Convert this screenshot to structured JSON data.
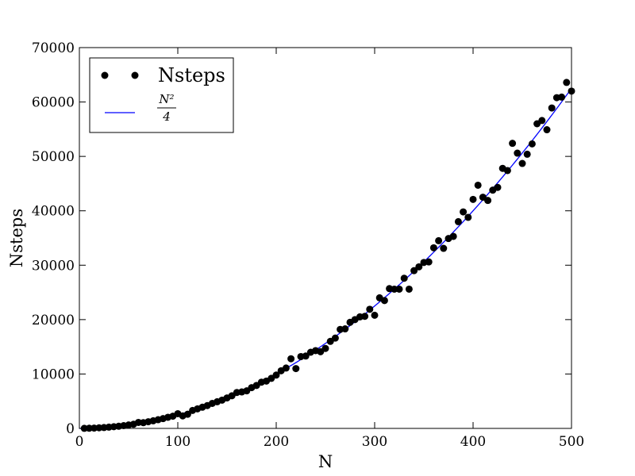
{
  "chart_data": {
    "type": "scatter",
    "xlabel": "N",
    "ylabel": "Nsteps",
    "xlim": [
      0,
      500
    ],
    "ylim": [
      0,
      70000
    ],
    "xticks": [
      "0",
      "100",
      "200",
      "300",
      "400",
      "500"
    ],
    "yticks": [
      "0",
      "10000",
      "20000",
      "30000",
      "40000",
      "50000",
      "60000",
      "70000"
    ],
    "grid": false,
    "legend_position": "top-left",
    "legend": {
      "points_label": "Nsteps",
      "line_label_numerator": "N²",
      "line_label_denominator": "4"
    },
    "series": [
      {
        "name": "Nsteps",
        "kind": "points",
        "color": "#000000",
        "x": [
          5,
          10,
          15,
          20,
          25,
          30,
          35,
          40,
          45,
          50,
          55,
          60,
          65,
          70,
          75,
          80,
          85,
          90,
          95,
          100,
          105,
          110,
          115,
          120,
          125,
          130,
          135,
          140,
          145,
          150,
          155,
          160,
          165,
          170,
          175,
          180,
          185,
          190,
          195,
          200,
          205,
          210,
          215,
          220,
          225,
          230,
          235,
          240,
          245,
          250,
          255,
          260,
          265,
          270,
          275,
          280,
          285,
          290,
          295,
          300,
          305,
          310,
          315,
          320,
          325,
          330,
          335,
          340,
          345,
          350,
          355,
          360,
          365,
          370,
          375,
          380,
          385,
          390,
          395,
          400,
          405,
          410,
          415,
          420,
          425,
          430,
          435,
          440,
          445,
          450,
          455,
          460,
          465,
          470,
          475,
          480,
          485,
          490,
          495,
          500
        ],
        "y": [
          10,
          30,
          60,
          110,
          160,
          230,
          310,
          400,
          510,
          630,
          760,
          1100,
          1050,
          1230,
          1400,
          1600,
          1800,
          2050,
          2250,
          2700,
          2300,
          2600,
          3300,
          3600,
          3900,
          4200,
          4600,
          4900,
          5200,
          5600,
          6000,
          6600,
          6700,
          6900,
          7500,
          7900,
          8500,
          8700,
          9200,
          9800,
          10600,
          11100,
          12800,
          11000,
          13200,
          13300,
          14000,
          14300,
          14100,
          14700,
          16000,
          16600,
          18200,
          18300,
          19500,
          20000,
          20500,
          20600,
          21900,
          20800,
          24000,
          23500,
          25700,
          25600,
          25600,
          27600,
          25600,
          29000,
          29700,
          30500,
          30600,
          33200,
          34500,
          33100,
          34900,
          35300,
          38000,
          39800,
          38800,
          42100,
          44700,
          42500,
          41900,
          43800,
          44300,
          47800,
          47400,
          52400,
          50600,
          48700,
          50400,
          52300,
          56000,
          56600,
          54900,
          58900,
          60800,
          60900,
          63600,
          62000
        ]
      },
      {
        "name": "N^2/4",
        "kind": "line",
        "color": "#0000ff",
        "formula": "N^2/4"
      }
    ]
  }
}
